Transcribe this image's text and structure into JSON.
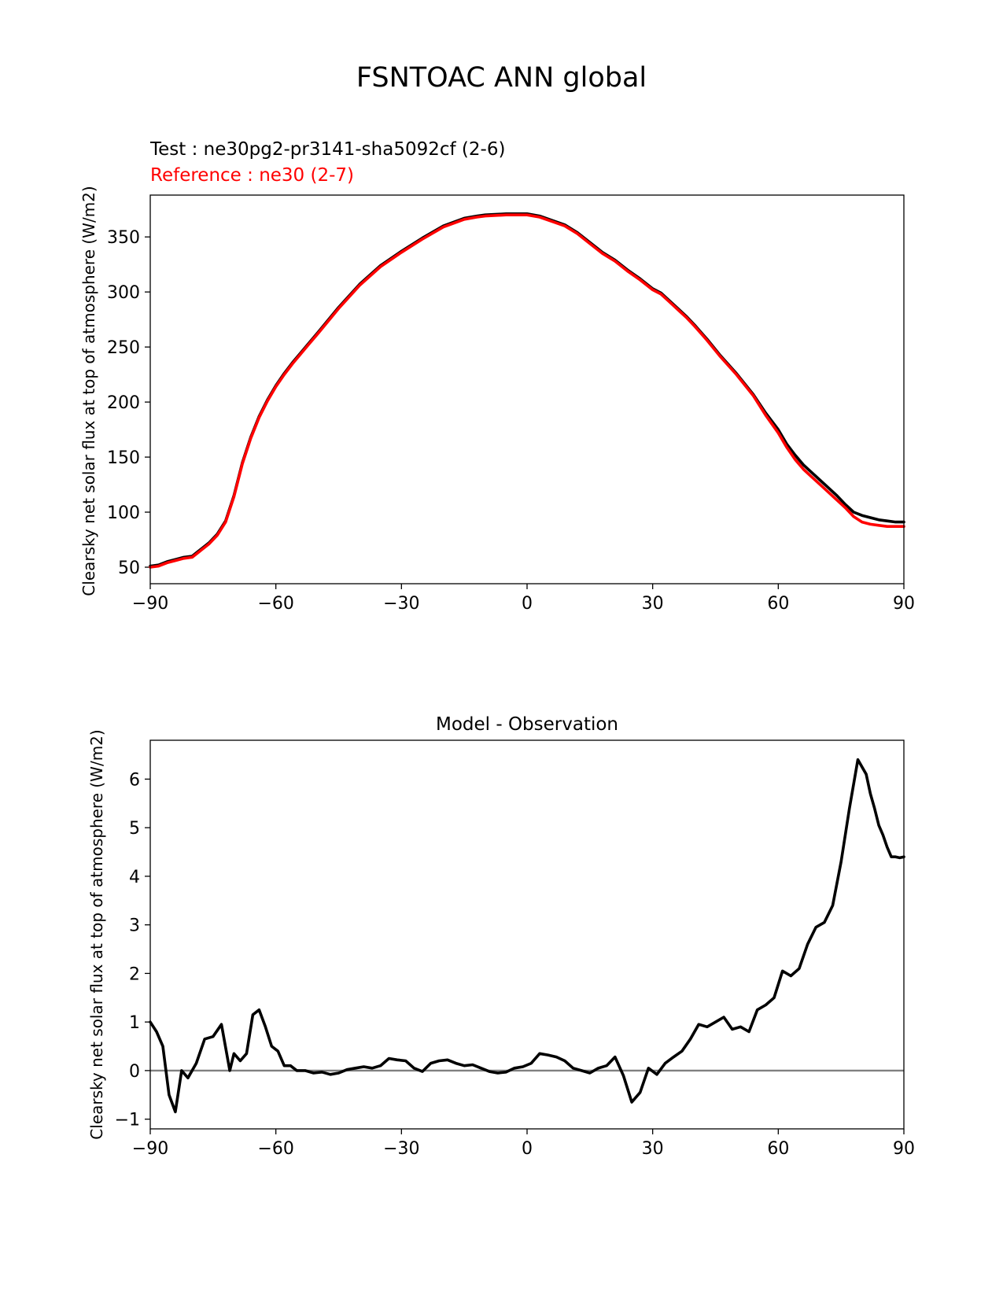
{
  "figure_title": "FSNTOAC ANN global",
  "chart_data": [
    {
      "type": "line",
      "title": "",
      "test_label": "Test : ne30pg2-pr3141-sha5092cf (2-6)",
      "reference_label": "Reference : ne30 (2-7)",
      "xlabel": "",
      "ylabel": "Clearsky net solar flux at top of atmosphere (W/m2)",
      "xlim": [
        -90,
        90
      ],
      "ylim": [
        35,
        388
      ],
      "xticks": [
        -90,
        -60,
        -30,
        0,
        30,
        60,
        90
      ],
      "xtick_labels": [
        "−90",
        "−60",
        "−30",
        "0",
        "30",
        "60",
        "90"
      ],
      "yticks": [
        50,
        100,
        150,
        200,
        250,
        300,
        350
      ],
      "ytick_labels": [
        "50",
        "100",
        "150",
        "200",
        "250",
        "300",
        "350"
      ],
      "series": [
        {
          "name": "Test",
          "color": "#000000",
          "x": [
            -90,
            -88,
            -86,
            -84,
            -82,
            -80,
            -78,
            -76,
            -74,
            -72,
            -70,
            -68,
            -66,
            -64,
            -62,
            -60,
            -58,
            -56,
            -54,
            -52,
            -50,
            -45,
            -40,
            -35,
            -30,
            -25,
            -20,
            -15,
            -12,
            -10,
            -5,
            0,
            3,
            6,
            9,
            12,
            15,
            18,
            21,
            24,
            27,
            30,
            32,
            34,
            36,
            38,
            40,
            43,
            46,
            50,
            54,
            57,
            60,
            62,
            64,
            66,
            68,
            70,
            72,
            74,
            76,
            78,
            80,
            82,
            84,
            86,
            88,
            90
          ],
          "values": [
            51,
            52,
            55,
            57,
            59,
            60,
            66,
            72,
            80,
            92,
            115,
            145,
            168,
            187,
            202,
            215,
            226,
            236,
            245,
            254,
            263,
            286,
            307,
            324,
            337,
            349,
            360,
            367,
            369,
            370,
            371,
            371,
            369,
            365,
            361,
            354,
            345,
            336,
            329,
            320,
            312,
            303,
            299,
            292,
            285,
            278,
            270,
            257,
            243,
            226,
            207,
            190,
            175,
            162,
            152,
            143,
            136,
            129,
            122,
            115,
            107,
            100,
            97,
            95,
            93,
            92,
            91,
            91
          ]
        },
        {
          "name": "Reference",
          "color": "#ff0000",
          "x": [
            -90,
            -88,
            -86,
            -84,
            -82,
            -80,
            -78,
            -76,
            -74,
            -72,
            -70,
            -68,
            -66,
            -64,
            -62,
            -60,
            -58,
            -56,
            -54,
            -52,
            -50,
            -45,
            -40,
            -35,
            -30,
            -25,
            -20,
            -15,
            -12,
            -10,
            -5,
            0,
            3,
            6,
            9,
            12,
            15,
            18,
            21,
            24,
            27,
            30,
            32,
            34,
            36,
            38,
            40,
            43,
            46,
            50,
            54,
            57,
            60,
            62,
            64,
            66,
            68,
            70,
            72,
            74,
            76,
            78,
            80,
            82,
            84,
            86,
            88,
            90
          ],
          "values": [
            50,
            51,
            54,
            56,
            58,
            59,
            65,
            71,
            79,
            91,
            114,
            144,
            167,
            186,
            201,
            214,
            225,
            235,
            244,
            253,
            262,
            285,
            306,
            323,
            336,
            348,
            359,
            366,
            368,
            369,
            370,
            370,
            368,
            364,
            360,
            353,
            344,
            335,
            328,
            319,
            311,
            302,
            298,
            291,
            284,
            277,
            269,
            256,
            242,
            225,
            206,
            188,
            172,
            159,
            148,
            139,
            132,
            125,
            118,
            111,
            104,
            96,
            91,
            89,
            88,
            87,
            87,
            87
          ]
        }
      ]
    },
    {
      "type": "line",
      "title": "Model - Observation",
      "xlabel": "",
      "ylabel": "Clearsky net solar flux at top of atmosphere (W/m2)",
      "xlim": [
        -90,
        90
      ],
      "ylim": [
        -1.2,
        6.8
      ],
      "xticks": [
        -90,
        -60,
        -30,
        0,
        30,
        60,
        90
      ],
      "xtick_labels": [
        "−90",
        "−60",
        "−30",
        "0",
        "30",
        "60",
        "90"
      ],
      "yticks": [
        -1,
        0,
        1,
        2,
        3,
        4,
        5,
        6
      ],
      "ytick_labels": [
        "−1",
        "0",
        "1",
        "2",
        "3",
        "4",
        "5",
        "6"
      ],
      "zero_line_color": "#808080",
      "series": [
        {
          "name": "Model - Observation",
          "color": "#000000",
          "x": [
            -90,
            -88.5,
            -87,
            -85.5,
            -84,
            -82.5,
            -81,
            -79,
            -77,
            -75,
            -73,
            -71,
            -70,
            -68.5,
            -67,
            -65.5,
            -64,
            -62.5,
            -61,
            -59.5,
            -58,
            -56.5,
            -55,
            -53,
            -51,
            -49,
            -47,
            -45,
            -43,
            -41,
            -39,
            -37,
            -35,
            -33,
            -31,
            -29,
            -27,
            -25,
            -23,
            -21,
            -19,
            -17,
            -15,
            -13,
            -11,
            -9,
            -7,
            -5,
            -3,
            -1,
            1,
            3,
            5,
            7,
            9,
            11,
            13,
            15,
            17,
            19,
            21,
            23,
            25,
            27,
            29,
            31,
            33,
            35,
            37,
            39,
            41,
            43,
            45,
            47,
            49,
            51,
            53,
            55,
            57,
            59,
            61,
            63,
            65,
            67,
            69,
            71,
            73,
            75,
            77,
            79,
            81,
            82,
            83,
            84,
            85,
            86,
            87,
            88,
            89,
            90
          ],
          "values": [
            1.0,
            0.8,
            0.5,
            -0.5,
            -0.85,
            0.0,
            -0.15,
            0.15,
            0.65,
            0.7,
            0.95,
            0.0,
            0.35,
            0.2,
            0.35,
            1.15,
            1.25,
            0.9,
            0.5,
            0.4,
            0.1,
            0.1,
            0.0,
            0.0,
            -0.05,
            -0.03,
            -0.08,
            -0.05,
            0.02,
            0.05,
            0.08,
            0.05,
            0.1,
            0.25,
            0.22,
            0.2,
            0.05,
            -0.02,
            0.15,
            0.2,
            0.22,
            0.15,
            0.1,
            0.12,
            0.05,
            -0.02,
            -0.05,
            -0.03,
            0.05,
            0.08,
            0.15,
            0.35,
            0.32,
            0.28,
            0.2,
            0.05,
            0.0,
            -0.05,
            0.05,
            0.1,
            0.28,
            -0.1,
            -0.65,
            -0.45,
            0.05,
            -0.08,
            0.15,
            0.28,
            0.4,
            0.65,
            0.95,
            0.9,
            1.0,
            1.1,
            0.85,
            0.9,
            0.8,
            1.25,
            1.35,
            1.5,
            2.05,
            1.95,
            2.1,
            2.6,
            2.95,
            3.05,
            3.4,
            4.3,
            5.4,
            6.4,
            6.1,
            5.7,
            5.4,
            5.05,
            4.85,
            4.6,
            4.4,
            4.4,
            4.38,
            4.4
          ]
        }
      ]
    }
  ]
}
